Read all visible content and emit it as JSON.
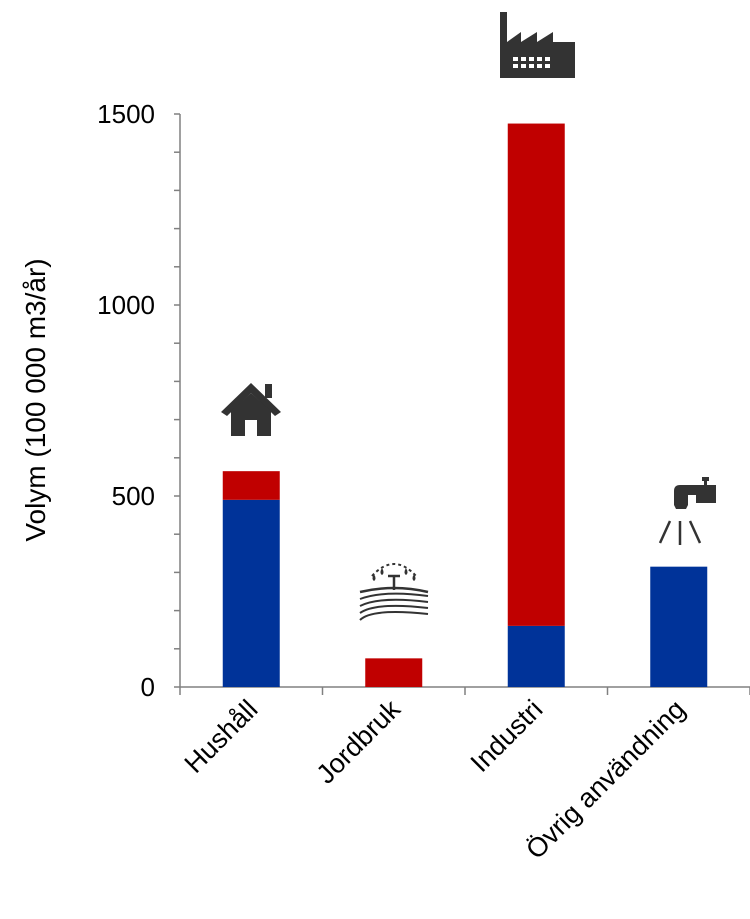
{
  "chart_data": {
    "type": "bar",
    "stacked": true,
    "categories": [
      "Hushåll",
      "Jordbruk",
      "Industri",
      "Övrig användning"
    ],
    "series": [
      {
        "color": "#003399",
        "values": [
          490,
          0,
          160,
          315
        ]
      },
      {
        "color": "#C00000",
        "values": [
          75,
          75,
          1315,
          0
        ]
      }
    ],
    "ylabel": "Volym (100 000 m3/år)",
    "xlabel": "",
    "ylim": [
      0,
      1500
    ],
    "yticks": [
      0,
      500,
      1000,
      1500
    ],
    "grid": false,
    "legend": "none",
    "category_icons": [
      "house-icon",
      "irrigation-field-icon",
      "factory-icon",
      "water-tap-icon"
    ]
  }
}
